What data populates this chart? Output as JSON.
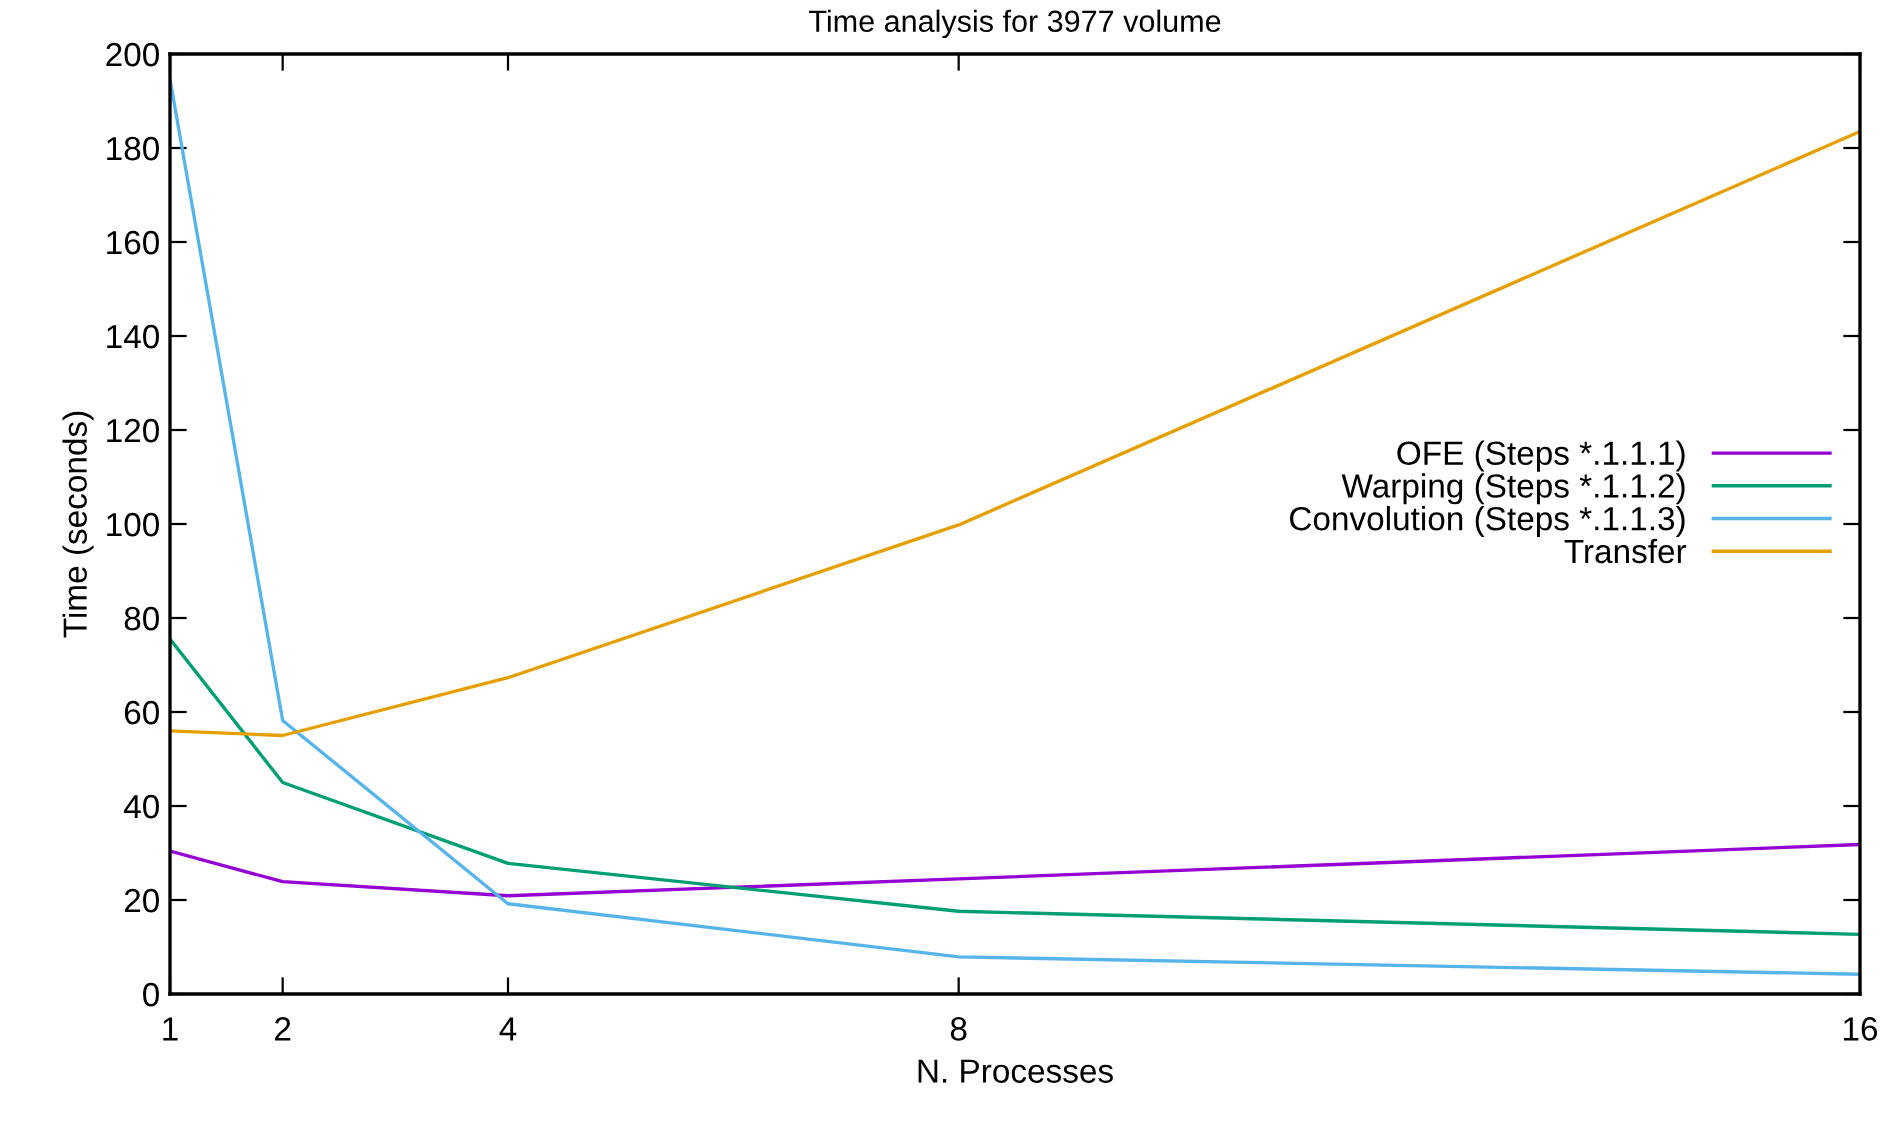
{
  "chart_data": {
    "type": "line",
    "title": "Time analysis for 3977 volume",
    "xlabel": "N. Processes",
    "ylabel": "Time (seconds)",
    "x": [
      1,
      2,
      4,
      8,
      16
    ],
    "series": [
      {
        "name": "OFE (Steps *.1.1.1)",
        "color": "#9400d3",
        "values": [
          30.4,
          23.9,
          20.9,
          24.5,
          31.8
        ]
      },
      {
        "name": "Warping (Steps *.1.1.2)",
        "color": "#009e73",
        "values": [
          75.5,
          45,
          27.8,
          17.6,
          12.7
        ]
      },
      {
        "name": "Convolution (Steps *.1.1.3)",
        "color": "#56b4e9",
        "values": [
          194.6,
          58.2,
          19.2,
          7.9,
          4.2
        ]
      },
      {
        "name": "Transfer",
        "color": "#e69f00",
        "values": [
          56,
          55,
          67.3,
          99.8,
          183.5
        ]
      }
    ],
    "xlim": [
      1,
      16
    ],
    "xticks": [
      1,
      2,
      4,
      8,
      16
    ],
    "ylim": [
      0,
      200
    ],
    "yticks": [
      0,
      20,
      40,
      60,
      80,
      100,
      120,
      140,
      160,
      180,
      200
    ],
    "grid": false,
    "legend": "right",
    "marker": "none",
    "line_style": "solid"
  }
}
